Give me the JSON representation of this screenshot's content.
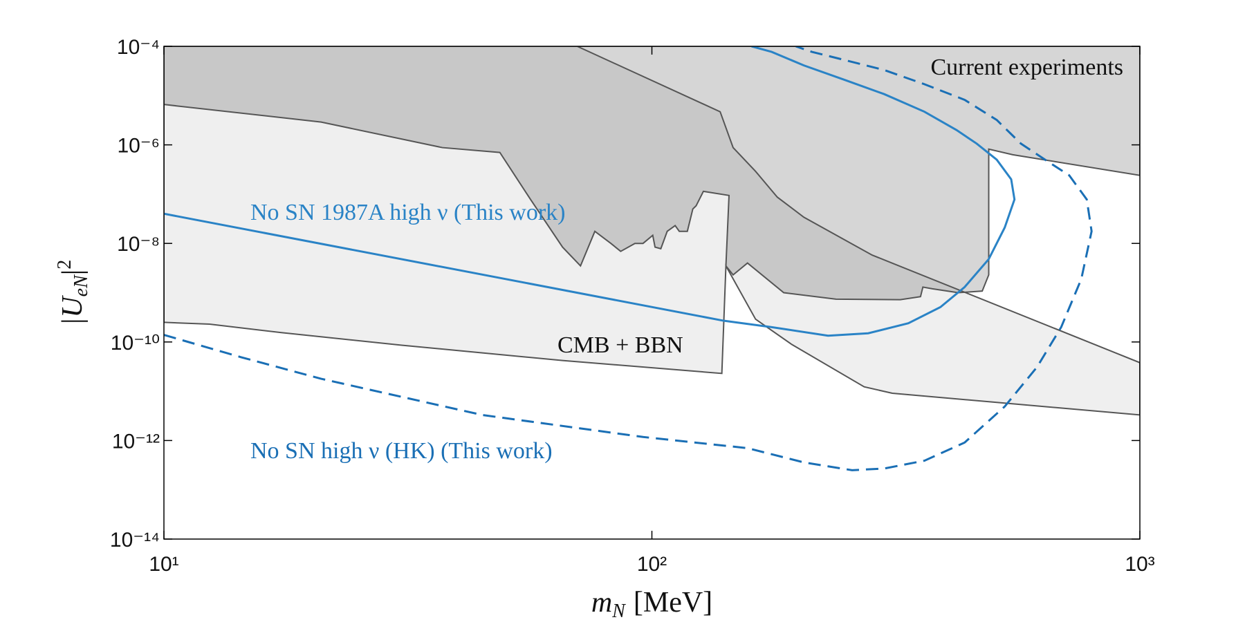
{
  "chart_data": {
    "type": "line",
    "xscale": "log",
    "yscale": "log",
    "xlim": [
      10,
      1000
    ],
    "ylim": [
      1e-14,
      0.0001
    ],
    "xticks": [
      {
        "value": 10,
        "label": "10¹"
      },
      {
        "value": 100,
        "label": "10²"
      },
      {
        "value": 1000,
        "label": "10³"
      }
    ],
    "yticks": [
      {
        "value": 1e-14,
        "label": "10⁻¹⁴"
      },
      {
        "value": 1e-12,
        "label": "10⁻¹²"
      },
      {
        "value": 1e-10,
        "label": "10⁻¹⁰"
      },
      {
        "value": 1e-08,
        "label": "10⁻⁸"
      },
      {
        "value": 1e-06,
        "label": "10⁻⁶"
      },
      {
        "value": 0.0001,
        "label": "10⁻⁴"
      }
    ],
    "xlabel": {
      "symbol": "m",
      "subscript": "N",
      "unit": "[MeV]"
    },
    "ylabel": {
      "symbol": "|U",
      "subscript": "eN",
      "suffix": "|",
      "superscript": "2"
    },
    "edgecolor": "#555555",
    "regions": [
      {
        "label": "CMB + BBN",
        "color": "#efefef",
        "label_color": "#111111",
        "x": [
          10,
          70.3,
          138,
          146.7,
          163.1,
          180.7,
          204.8,
          282.7,
          1000,
          1000,
          310.9,
          272.3,
          193.5,
          163.1,
          141.8,
          139.1,
          65.6,
          30.7,
          17.4,
          12.4,
          10
        ],
        "y": [
          0.0001,
          0.0001,
          4.7e-06,
          8.8e-07,
          2.9e-07,
          8.7e-08,
          3.4e-08,
          5.8e-09,
          3.8e-11,
          3.3e-12,
          9.1e-12,
          1.23e-11,
          8.9e-11,
          2.9e-10,
          3.5e-09,
          2.3e-11,
          4.2e-11,
          8.6e-11,
          1.55e-10,
          2.3e-10,
          2.5e-10
        ]
      },
      {
        "label": "Current experiments",
        "color": "#d6d6d6",
        "label_color": "#111111",
        "x": [
          10,
          1000,
          1000,
          549,
          490.1,
          490.1,
          475.3,
          424.4,
          375.8,
          359.2,
          355.2,
          322.9,
          238.4,
          186.3,
          157,
          146.7,
          141.8,
          143.9,
          127.5,
          123.2,
          121.3,
          118.2,
          113.8,
          111.6,
          107.5,
          104.3,
          101.5,
          100.4,
          95.9,
          92.3,
          86.3,
          82.4,
          76.4,
          71.4,
          65.6,
          56.4,
          48.8,
          37.2,
          21,
          10
        ],
        "y": [
          0.0001,
          0.0001,
          2.4e-07,
          6.3e-07,
          8.2e-07,
          2.3e-09,
          1.08e-09,
          1e-09,
          1.2e-09,
          1.3e-09,
          8.3e-10,
          7.2e-10,
          7.4e-10,
          1e-09,
          4e-09,
          2.3e-09,
          3.5e-09,
          9.4e-08,
          1.14e-07,
          5.8e-08,
          5e-08,
          1.76e-08,
          1.76e-08,
          2.3e-08,
          1.76e-08,
          7.8e-09,
          8.4e-09,
          1.46e-08,
          1e-08,
          1e-08,
          6.9e-09,
          1e-08,
          1.76e-08,
          3.5e-09,
          8.4e-09,
          7.8e-08,
          7e-07,
          8.8e-07,
          2.9e-06,
          6.6e-06
        ]
      }
    ],
    "series": [
      {
        "label": "No SN 1987A high ν (This work)",
        "color": "#2a83c6",
        "line_style": "solid",
        "x": [
          10,
          140.2,
          176,
          229.6,
          277.5,
          335.4,
          390.2,
          437.4,
          490.1,
          528.5,
          553.4,
          544.9,
          509,
          463,
          421,
          361.9,
          299.3,
          247.7,
          204.8,
          176,
          160
        ],
        "y": [
          4e-08,
          2.7e-10,
          2e-10,
          1.34e-10,
          1.5e-10,
          2.4e-10,
          5.1e-10,
          1.3e-09,
          4.8e-09,
          2.1e-08,
          7.8e-08,
          2e-07,
          5e-07,
          1.06e-06,
          2e-06,
          4.7e-06,
          1.07e-05,
          2.1e-05,
          4.1e-05,
          7.7e-05,
          0.0001
        ]
      },
      {
        "label": "No SN high ν (HK) (This work)",
        "color": "#1a6fb5",
        "line_style": "dashed",
        "x": [
          10,
          14.4,
          21,
          44.9,
          95.9,
          157,
          204.8,
          257.2,
          299.3,
          361.9,
          437.4,
          528.5,
          615.6,
          689.9,
          758.6,
          796.3,
          778.4,
          716.6,
          639.2,
          570.4,
          509,
          437.4,
          361.9,
          299.3,
          247.7,
          212.8,
          197.2
        ],
        "y": [
          1.39e-10,
          4.9e-11,
          1.79e-11,
          3.3e-12,
          1.18e-12,
          7e-13,
          3.6e-13,
          2.5e-13,
          2.7e-13,
          3.9e-13,
          9.1e-13,
          4.9e-12,
          3.1e-11,
          2e-10,
          1.9e-09,
          1.76e-08,
          7.8e-08,
          2.4e-07,
          5e-07,
          1.06e-06,
          3.2e-06,
          8.2e-06,
          1.7e-05,
          3.3e-05,
          5.3e-05,
          7.7e-05,
          0.0001
        ]
      }
    ]
  }
}
